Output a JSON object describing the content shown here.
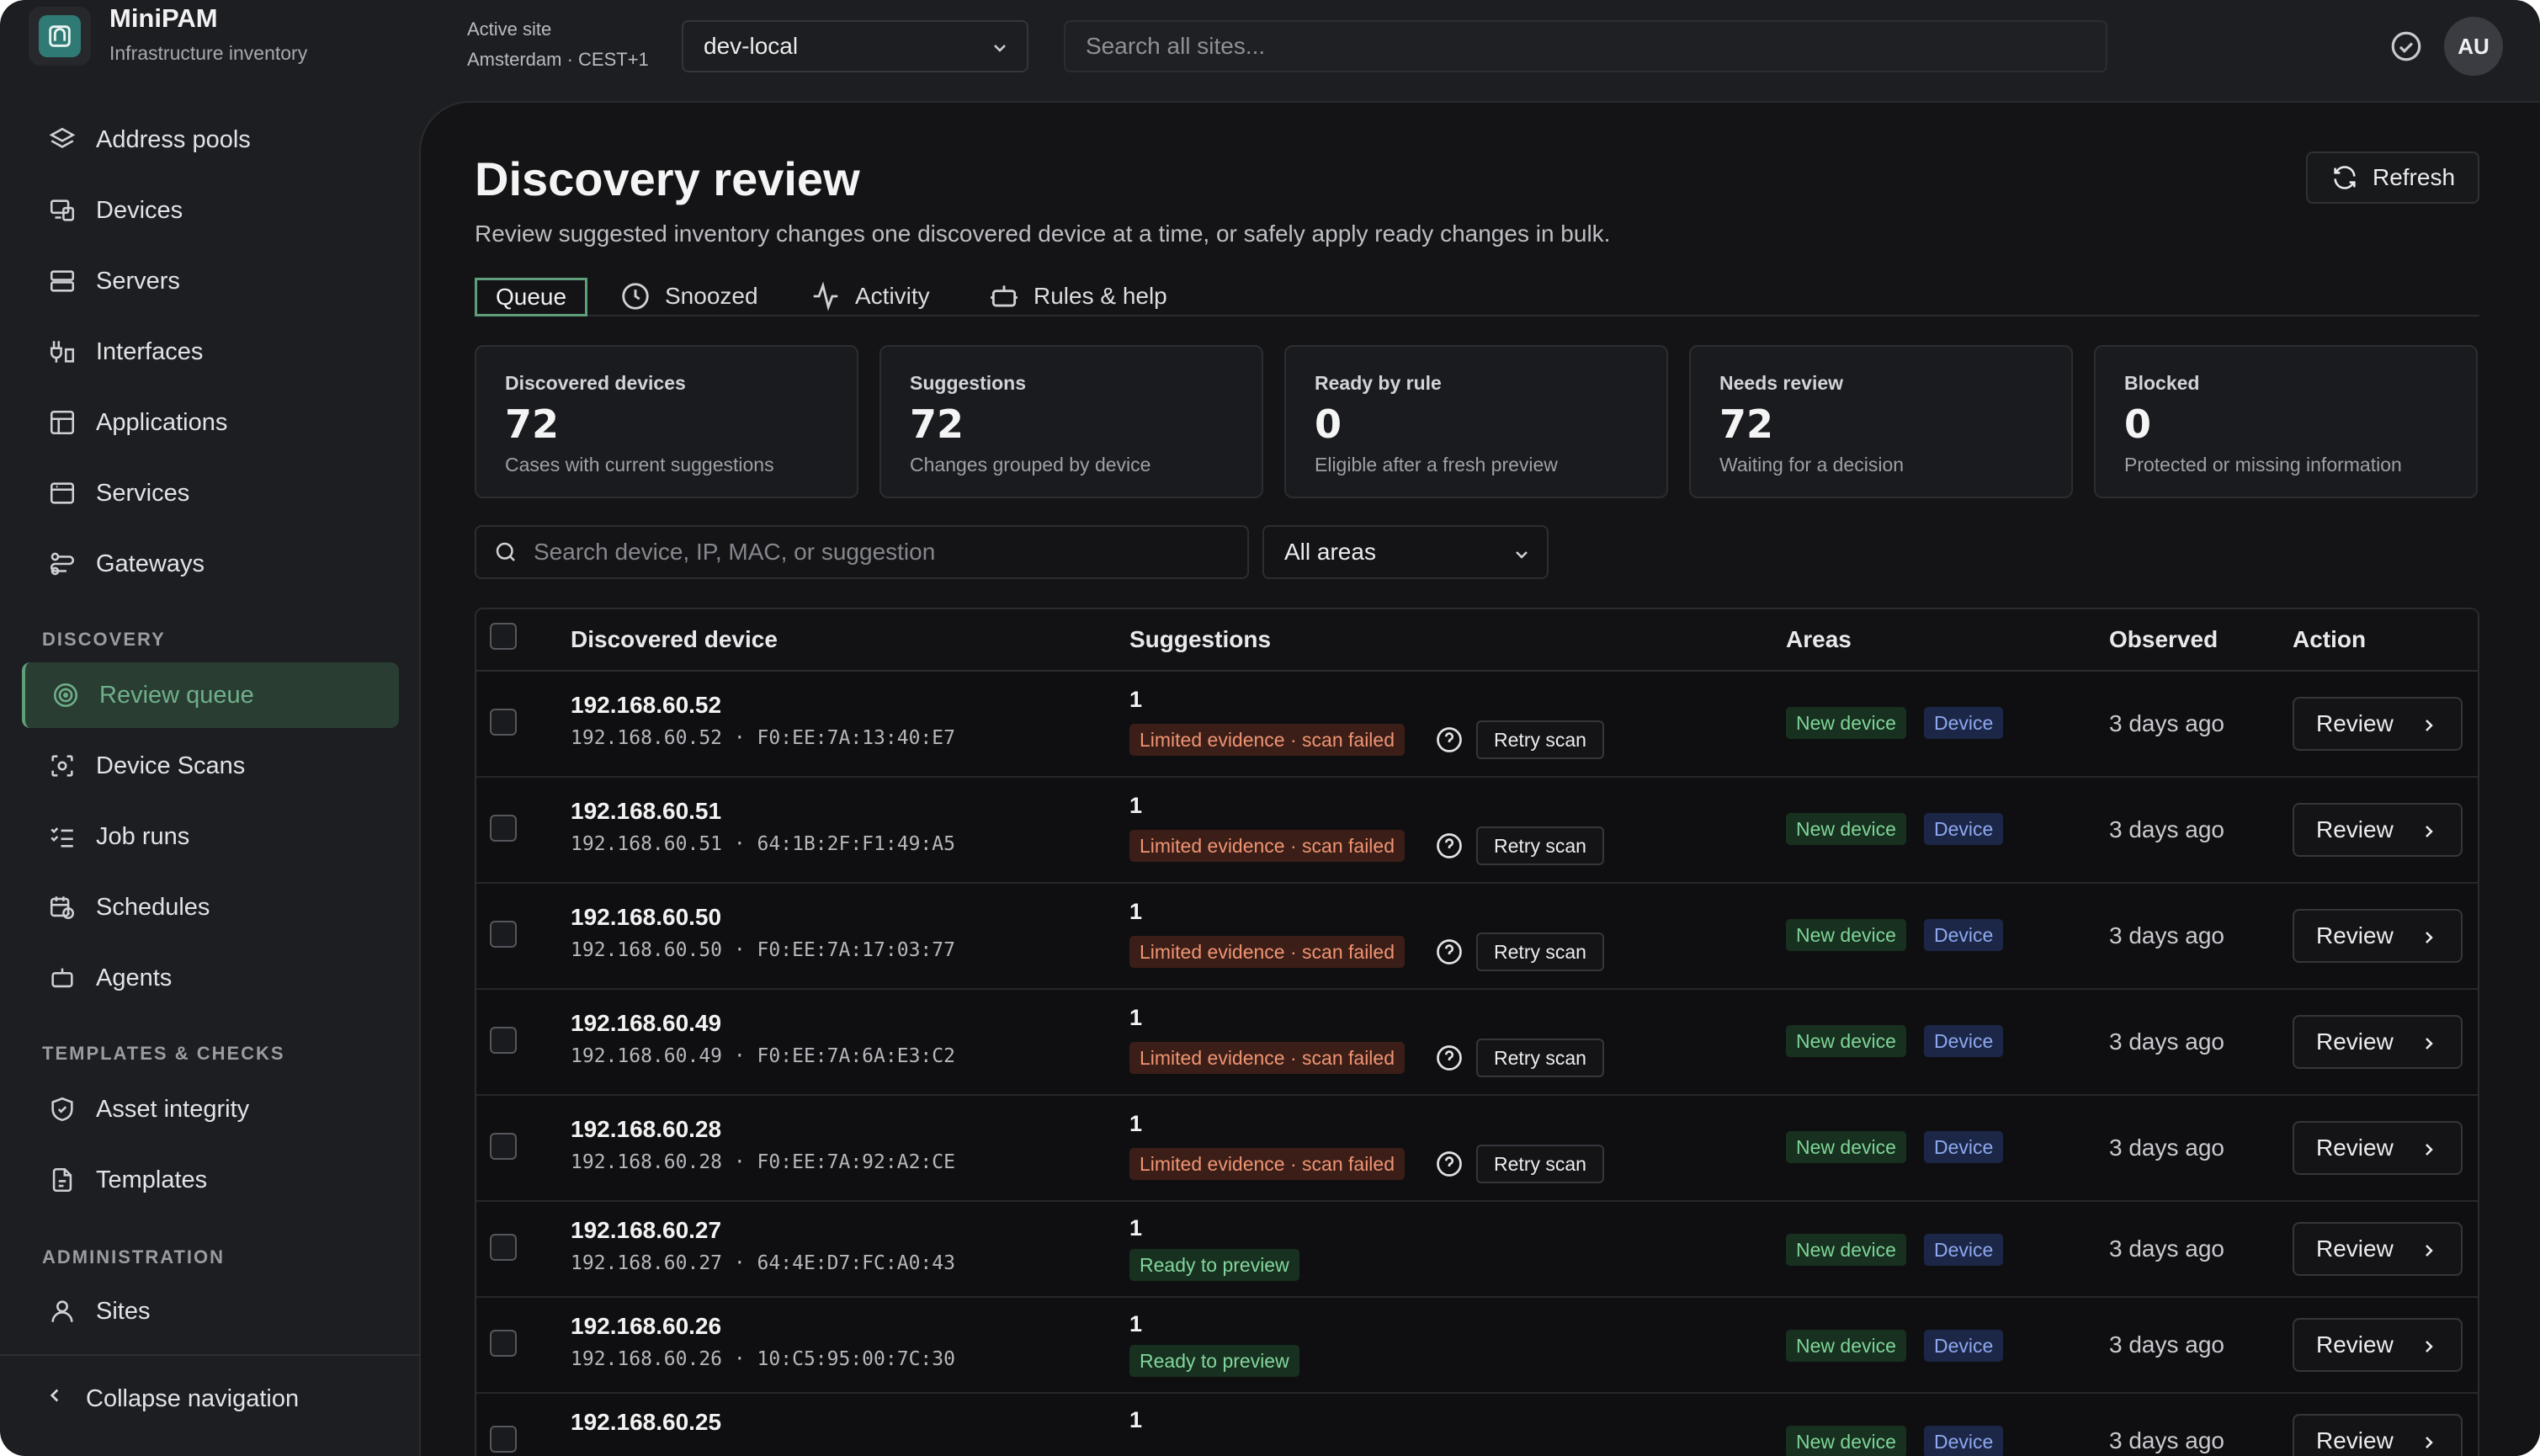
{
  "app": {
    "name": "MiniPAM",
    "subtitle": "Infrastructure inventory"
  },
  "topbar": {
    "site_label": "Active site",
    "site_sub": "Amsterdam · CEST+1",
    "site_value": "dev-local",
    "search_placeholder": "Search all sites...",
    "avatar": "AU"
  },
  "sidebar": {
    "items": [
      {
        "label": "Address pools",
        "icon": "layers-icon"
      },
      {
        "label": "Devices",
        "icon": "devices-icon"
      },
      {
        "label": "Servers",
        "icon": "server-icon"
      },
      {
        "label": "Interfaces",
        "icon": "interfaces-icon"
      },
      {
        "label": "Applications",
        "icon": "applications-icon"
      },
      {
        "label": "Services",
        "icon": "services-icon"
      },
      {
        "label": "Gateways",
        "icon": "gateway-icon"
      }
    ],
    "discovery_heading": "DISCOVERY",
    "discovery_items": [
      {
        "label": "Review queue",
        "icon": "radar-icon"
      },
      {
        "label": "Device Scans",
        "icon": "scan-icon"
      },
      {
        "label": "Job runs",
        "icon": "list-check-icon"
      },
      {
        "label": "Schedules",
        "icon": "calendar-clock-icon"
      },
      {
        "label": "Agents",
        "icon": "bot-icon"
      }
    ],
    "templates_heading": "TEMPLATES & CHECKS",
    "templates_items": [
      {
        "label": "Asset integrity",
        "icon": "shield-check-icon"
      },
      {
        "label": "Templates",
        "icon": "file-template-icon"
      }
    ],
    "admin_heading": "ADMINISTRATION",
    "admin_items": [
      {
        "label": "Sites",
        "icon": "user-icon"
      }
    ],
    "collapse_label": "Collapse navigation"
  },
  "main": {
    "title": "Discovery review",
    "description": "Review suggested inventory changes one discovered device at a time, or safely apply ready changes in bulk.",
    "refresh_label": "Refresh",
    "tabs": [
      {
        "label": "Queue",
        "icon": ""
      },
      {
        "label": "Snoozed",
        "icon": "clock-icon"
      },
      {
        "label": "Activity",
        "icon": "activity-icon"
      },
      {
        "label": "Rules & help",
        "icon": "bot-icon"
      }
    ],
    "stats": [
      {
        "label": "Discovered devices",
        "value": "72",
        "sub": "Cases with current suggestions"
      },
      {
        "label": "Suggestions",
        "value": "72",
        "sub": "Changes grouped by device"
      },
      {
        "label": "Ready by rule",
        "value": "0",
        "sub": "Eligible after a fresh preview"
      },
      {
        "label": "Needs review",
        "value": "72",
        "sub": "Waiting for a decision"
      },
      {
        "label": "Blocked",
        "value": "0",
        "sub": "Protected or missing information"
      }
    ],
    "table_search_placeholder": "Search device, IP, MAC, or suggestion",
    "area_filter": "All areas"
  },
  "table": {
    "columns": [
      "Discovered device",
      "Suggestions",
      "Areas",
      "Observed",
      "Action"
    ],
    "rows": [
      {
        "ip": "192.168.60.52",
        "detail": "192.168.60.52 · F0:EE:7A:13:40:E7",
        "count": "1",
        "status": "Limited evidence · scan failed",
        "status_kind": "warn",
        "retry": "Retry scan",
        "areas": [
          "New device",
          "Device"
        ],
        "observed": "3 days ago",
        "action": "Review"
      },
      {
        "ip": "192.168.60.51",
        "detail": "192.168.60.51 · 64:1B:2F:F1:49:A5",
        "count": "1",
        "status": "Limited evidence · scan failed",
        "status_kind": "warn",
        "retry": "Retry scan",
        "areas": [
          "New device",
          "Device"
        ],
        "observed": "3 days ago",
        "action": "Review"
      },
      {
        "ip": "192.168.60.50",
        "detail": "192.168.60.50 · F0:EE:7A:17:03:77",
        "count": "1",
        "status": "Limited evidence · scan failed",
        "status_kind": "warn",
        "retry": "Retry scan",
        "areas": [
          "New device",
          "Device"
        ],
        "observed": "3 days ago",
        "action": "Review"
      },
      {
        "ip": "192.168.60.49",
        "detail": "192.168.60.49 · F0:EE:7A:6A:E3:C2",
        "count": "1",
        "status": "Limited evidence · scan failed",
        "status_kind": "warn",
        "retry": "Retry scan",
        "areas": [
          "New device",
          "Device"
        ],
        "observed": "3 days ago",
        "action": "Review"
      },
      {
        "ip": "192.168.60.28",
        "detail": "192.168.60.28 · F0:EE:7A:92:A2:CE",
        "count": "1",
        "status": "Limited evidence · scan failed",
        "status_kind": "warn",
        "retry": "Retry scan",
        "areas": [
          "New device",
          "Device"
        ],
        "observed": "3 days ago",
        "action": "Review"
      },
      {
        "ip": "192.168.60.27",
        "detail": "192.168.60.27 · 64:4E:D7:FC:A0:43",
        "count": "1",
        "status": "Ready to preview",
        "status_kind": "ok",
        "retry": "",
        "areas": [
          "New device",
          "Device"
        ],
        "observed": "3 days ago",
        "action": "Review"
      },
      {
        "ip": "192.168.60.26",
        "detail": "192.168.60.26 · 10:C5:95:00:7C:30",
        "count": "1",
        "status": "Ready to preview",
        "status_kind": "ok",
        "retry": "",
        "areas": [
          "New device",
          "Device"
        ],
        "observed": "3 days ago",
        "action": "Review"
      },
      {
        "ip": "192.168.60.25",
        "detail": "",
        "count": "1",
        "status": "",
        "status_kind": "ok",
        "retry": "",
        "areas": [
          "New device",
          "Device"
        ],
        "observed": "3 days ago",
        "action": "Review"
      }
    ]
  },
  "colors": {
    "accent": "#5f9e7a",
    "warn": "#ef9473",
    "ok": "#83d69c",
    "device_tag": "#8ea8ee"
  }
}
